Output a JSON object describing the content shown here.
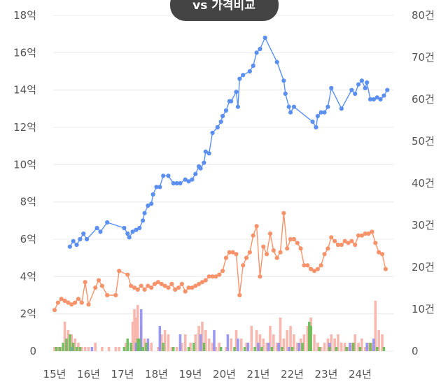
{
  "chart_data": {
    "type": "line",
    "badge": "vs 가격비교",
    "grid": true,
    "x_categories": [
      "15년",
      "16년",
      "17년",
      "18년",
      "19년",
      "20년",
      "21년",
      "22년",
      "23년",
      "24년"
    ],
    "x_range": [
      2015.0,
      2024.8
    ],
    "y_left": {
      "ticks": [
        "0",
        "2억",
        "4억",
        "6억",
        "8억",
        "10억",
        "12억",
        "14억",
        "16억",
        "18억"
      ],
      "range": [
        0,
        18
      ]
    },
    "y_right": {
      "ticks": [
        "0",
        "10건",
        "20건",
        "30건",
        "40건",
        "50건",
        "60건",
        "70건",
        "80건"
      ],
      "range": [
        0,
        80
      ]
    },
    "colors": {
      "blue": "#5b8ff0",
      "orange": "#f7936b",
      "pink_bar": "#f9b4ab",
      "green_bar": "#66bb55",
      "purple_bar": "#8f8ff0",
      "badge": "#444444"
    },
    "series": [
      {
        "key": "blue",
        "axis": "left",
        "points": [
          [
            2015.45,
            5.6
          ],
          [
            2015.55,
            5.9
          ],
          [
            2015.65,
            5.7
          ],
          [
            2015.75,
            6.0
          ],
          [
            2015.85,
            6.3
          ],
          [
            2015.95,
            6.0
          ],
          [
            2016.25,
            6.6
          ],
          [
            2016.35,
            6.4
          ],
          [
            2016.55,
            6.9
          ],
          [
            2017.05,
            6.6
          ],
          [
            2017.15,
            6.3
          ],
          [
            2017.2,
            6.1
          ],
          [
            2017.3,
            6.4
          ],
          [
            2017.4,
            6.5
          ],
          [
            2017.5,
            6.6
          ],
          [
            2017.6,
            7.0
          ],
          [
            2017.65,
            7.4
          ],
          [
            2017.75,
            7.8
          ],
          [
            2017.85,
            7.9
          ],
          [
            2017.9,
            8.4
          ],
          [
            2018.0,
            8.8
          ],
          [
            2018.1,
            8.8
          ],
          [
            2018.2,
            9.4
          ],
          [
            2018.35,
            9.4
          ],
          [
            2018.5,
            9.0
          ],
          [
            2018.6,
            9.0
          ],
          [
            2018.7,
            9.0
          ],
          [
            2018.85,
            9.2
          ],
          [
            2018.95,
            9.1
          ],
          [
            2019.05,
            9.2
          ],
          [
            2019.15,
            9.5
          ],
          [
            2019.25,
            9.9
          ],
          [
            2019.3,
            9.8
          ],
          [
            2019.4,
            10.1
          ],
          [
            2019.45,
            10.7
          ],
          [
            2019.55,
            10.6
          ],
          [
            2019.65,
            11.7
          ],
          [
            2019.8,
            12.0
          ],
          [
            2019.9,
            12.3
          ],
          [
            2019.95,
            12.6
          ],
          [
            2020.05,
            12.9
          ],
          [
            2020.15,
            13.4
          ],
          [
            2020.2,
            13.4
          ],
          [
            2020.35,
            13.9
          ],
          [
            2020.4,
            13.1
          ],
          [
            2020.45,
            14.6
          ],
          [
            2020.55,
            14.8
          ],
          [
            2020.75,
            15.0
          ],
          [
            2020.85,
            15.3
          ],
          [
            2020.95,
            16.0
          ],
          [
            2021.05,
            16.2
          ],
          [
            2021.2,
            16.8
          ],
          [
            2021.55,
            15.5
          ],
          [
            2021.75,
            14.5
          ],
          [
            2021.8,
            13.8
          ],
          [
            2021.9,
            13.1
          ],
          [
            2021.95,
            12.8
          ],
          [
            2022.05,
            13.1
          ],
          [
            2022.6,
            12.3
          ],
          [
            2022.7,
            12.0
          ],
          [
            2022.75,
            12.6
          ],
          [
            2022.85,
            12.8
          ],
          [
            2022.95,
            12.8
          ],
          [
            2023.05,
            13.1
          ],
          [
            2023.15,
            14.1
          ],
          [
            2023.45,
            13.0
          ],
          [
            2023.75,
            14.0
          ],
          [
            2023.85,
            13.8
          ],
          [
            2023.95,
            14.3
          ],
          [
            2024.05,
            14.5
          ],
          [
            2024.15,
            14.1
          ],
          [
            2024.2,
            14.4
          ],
          [
            2024.3,
            13.5
          ],
          [
            2024.4,
            13.5
          ],
          [
            2024.5,
            13.6
          ],
          [
            2024.6,
            13.5
          ],
          [
            2024.7,
            13.7
          ],
          [
            2024.8,
            14.0
          ]
        ]
      },
      {
        "key": "orange",
        "axis": "left",
        "points": [
          [
            2015.0,
            2.2
          ],
          [
            2015.1,
            2.6
          ],
          [
            2015.2,
            2.8
          ],
          [
            2015.3,
            2.7
          ],
          [
            2015.4,
            2.6
          ],
          [
            2015.5,
            2.5
          ],
          [
            2015.6,
            2.6
          ],
          [
            2015.7,
            2.8
          ],
          [
            2015.8,
            2.6
          ],
          [
            2015.9,
            3.7
          ],
          [
            2016.0,
            2.5
          ],
          [
            2016.2,
            3.4
          ],
          [
            2016.3,
            3.8
          ],
          [
            2016.4,
            3.5
          ],
          [
            2016.55,
            3.0
          ],
          [
            2016.8,
            3.0
          ],
          [
            2016.9,
            4.3
          ],
          [
            2017.15,
            4.1
          ],
          [
            2017.25,
            3.5
          ],
          [
            2017.35,
            3.4
          ],
          [
            2017.45,
            3.3
          ],
          [
            2017.55,
            3.5
          ],
          [
            2017.65,
            3.3
          ],
          [
            2017.75,
            3.5
          ],
          [
            2017.85,
            3.4
          ],
          [
            2017.95,
            3.6
          ],
          [
            2018.05,
            3.7
          ],
          [
            2018.15,
            3.6
          ],
          [
            2018.25,
            3.5
          ],
          [
            2018.35,
            3.4
          ],
          [
            2018.45,
            3.6
          ],
          [
            2018.55,
            3.3
          ],
          [
            2018.65,
            3.4
          ],
          [
            2018.75,
            3.6
          ],
          [
            2018.85,
            3.2
          ],
          [
            2018.95,
            3.4
          ],
          [
            2019.05,
            3.4
          ],
          [
            2019.15,
            3.5
          ],
          [
            2019.25,
            3.6
          ],
          [
            2019.35,
            3.7
          ],
          [
            2019.45,
            3.8
          ],
          [
            2019.55,
            4.0
          ],
          [
            2019.65,
            4.0
          ],
          [
            2019.75,
            4.0
          ],
          [
            2019.85,
            4.1
          ],
          [
            2019.95,
            4.3
          ],
          [
            2020.05,
            5.0
          ],
          [
            2020.15,
            5.3
          ],
          [
            2020.25,
            5.3
          ],
          [
            2020.35,
            5.2
          ],
          [
            2020.45,
            3.0
          ],
          [
            2020.55,
            4.6
          ],
          [
            2020.65,
            5.0
          ],
          [
            2020.75,
            5.3
          ],
          [
            2020.85,
            6.2
          ],
          [
            2020.95,
            6.7
          ],
          [
            2021.05,
            4.0
          ],
          [
            2021.15,
            5.6
          ],
          [
            2021.25,
            5.2
          ],
          [
            2021.35,
            6.3
          ],
          [
            2021.45,
            5.4
          ],
          [
            2021.55,
            5.0
          ],
          [
            2021.65,
            5.3
          ],
          [
            2021.75,
            7.4
          ],
          [
            2021.85,
            5.5
          ],
          [
            2021.95,
            6.0
          ],
          [
            2022.05,
            6.0
          ],
          [
            2022.15,
            5.8
          ],
          [
            2022.25,
            5.5
          ],
          [
            2022.35,
            4.6
          ],
          [
            2022.45,
            4.6
          ],
          [
            2022.55,
            4.4
          ],
          [
            2022.65,
            4.3
          ],
          [
            2022.75,
            4.4
          ],
          [
            2022.85,
            4.6
          ],
          [
            2022.95,
            5.2
          ],
          [
            2023.05,
            5.5
          ],
          [
            2023.15,
            6.1
          ],
          [
            2023.25,
            5.9
          ],
          [
            2023.35,
            5.7
          ],
          [
            2023.45,
            5.7
          ],
          [
            2023.55,
            5.9
          ],
          [
            2023.65,
            5.8
          ],
          [
            2023.75,
            5.9
          ],
          [
            2023.85,
            5.7
          ],
          [
            2023.95,
            6.2
          ],
          [
            2024.05,
            6.2
          ],
          [
            2024.15,
            6.3
          ],
          [
            2024.25,
            6.3
          ],
          [
            2024.35,
            6.4
          ],
          [
            2024.45,
            5.8
          ],
          [
            2024.55,
            5.3
          ],
          [
            2024.65,
            5.2
          ],
          [
            2024.75,
            4.4
          ]
        ]
      }
    ],
    "bars": {
      "axis": "right",
      "pink": [
        [
          2015.0,
          1
        ],
        [
          2015.1,
          1
        ],
        [
          2015.2,
          1
        ],
        [
          2015.3,
          7
        ],
        [
          2015.4,
          5
        ],
        [
          2015.5,
          4
        ],
        [
          2015.6,
          3
        ],
        [
          2015.7,
          2
        ],
        [
          2015.8,
          1
        ],
        [
          2015.9,
          1
        ],
        [
          2016.0,
          1
        ],
        [
          2016.2,
          2
        ],
        [
          2016.4,
          1
        ],
        [
          2016.6,
          1
        ],
        [
          2016.8,
          1
        ],
        [
          2016.9,
          1
        ],
        [
          2017.1,
          2
        ],
        [
          2017.3,
          7
        ],
        [
          2017.35,
          10
        ],
        [
          2017.4,
          8
        ],
        [
          2017.45,
          11
        ],
        [
          2017.55,
          6
        ],
        [
          2017.65,
          3
        ],
        [
          2017.75,
          2
        ],
        [
          2017.85,
          2
        ],
        [
          2018.05,
          1
        ],
        [
          2018.15,
          4
        ],
        [
          2018.25,
          5
        ],
        [
          2018.35,
          4
        ],
        [
          2018.45,
          1
        ],
        [
          2018.6,
          1
        ],
        [
          2018.75,
          2
        ],
        [
          2018.85,
          4
        ],
        [
          2019.0,
          2
        ],
        [
          2019.15,
          4
        ],
        [
          2019.25,
          6
        ],
        [
          2019.35,
          7
        ],
        [
          2019.45,
          5
        ],
        [
          2019.55,
          3
        ],
        [
          2019.65,
          2
        ],
        [
          2019.75,
          1
        ],
        [
          2019.85,
          2
        ],
        [
          2020.05,
          1
        ],
        [
          2020.2,
          3
        ],
        [
          2020.35,
          5
        ],
        [
          2020.5,
          3
        ],
        [
          2020.65,
          2
        ],
        [
          2020.8,
          6
        ],
        [
          2020.95,
          5
        ],
        [
          2021.05,
          4
        ],
        [
          2021.15,
          3
        ],
        [
          2021.25,
          2
        ],
        [
          2021.35,
          6
        ],
        [
          2021.45,
          4
        ],
        [
          2021.55,
          2
        ],
        [
          2021.65,
          8
        ],
        [
          2021.75,
          3
        ],
        [
          2021.85,
          5
        ],
        [
          2021.95,
          6
        ],
        [
          2022.05,
          4
        ],
        [
          2022.15,
          2
        ],
        [
          2022.25,
          3
        ],
        [
          2022.35,
          4
        ],
        [
          2022.45,
          6
        ],
        [
          2022.55,
          8
        ],
        [
          2022.65,
          4
        ],
        [
          2022.75,
          2
        ],
        [
          2022.85,
          1
        ],
        [
          2022.95,
          2
        ],
        [
          2023.05,
          3
        ],
        [
          2023.15,
          4
        ],
        [
          2023.25,
          3
        ],
        [
          2023.35,
          4
        ],
        [
          2023.45,
          2
        ],
        [
          2023.55,
          2
        ],
        [
          2023.65,
          1
        ],
        [
          2023.75,
          2
        ],
        [
          2023.85,
          4
        ],
        [
          2023.95,
          2
        ],
        [
          2024.05,
          3
        ],
        [
          2024.15,
          1
        ],
        [
          2024.25,
          2
        ],
        [
          2024.35,
          2
        ],
        [
          2024.45,
          12
        ],
        [
          2024.55,
          5
        ],
        [
          2024.65,
          4
        ]
      ],
      "green": [
        [
          2015.05,
          1
        ],
        [
          2015.15,
          1
        ],
        [
          2015.25,
          2
        ],
        [
          2015.35,
          3
        ],
        [
          2015.45,
          4
        ],
        [
          2015.55,
          2
        ],
        [
          2015.65,
          1
        ],
        [
          2015.75,
          1
        ],
        [
          2017.05,
          1
        ],
        [
          2017.15,
          3
        ],
        [
          2017.25,
          2
        ],
        [
          2017.45,
          3
        ],
        [
          2017.5,
          3
        ],
        [
          2017.6,
          1
        ],
        [
          2017.7,
          2
        ],
        [
          2018.2,
          2
        ],
        [
          2018.5,
          1
        ],
        [
          2018.95,
          1
        ],
        [
          2019.1,
          2
        ],
        [
          2019.4,
          2
        ],
        [
          2019.9,
          1
        ],
        [
          2020.3,
          1
        ],
        [
          2020.6,
          1
        ],
        [
          2020.9,
          1
        ],
        [
          2021.1,
          1
        ],
        [
          2021.4,
          1
        ],
        [
          2021.7,
          1
        ],
        [
          2022.0,
          1
        ],
        [
          2022.3,
          2
        ],
        [
          2022.5,
          7
        ],
        [
          2022.55,
          6
        ],
        [
          2022.8,
          1
        ],
        [
          2023.1,
          1
        ],
        [
          2023.3,
          1
        ],
        [
          2023.6,
          1
        ],
        [
          2023.8,
          2
        ],
        [
          2024.0,
          1
        ],
        [
          2024.3,
          2
        ],
        [
          2024.5,
          1
        ],
        [
          2024.7,
          1
        ]
      ],
      "purple": [
        [
          2015.5,
          1
        ],
        [
          2016.1,
          1
        ],
        [
          2017.4,
          2
        ],
        [
          2017.55,
          10
        ],
        [
          2017.75,
          3
        ],
        [
          2018.1,
          6
        ],
        [
          2018.7,
          4
        ],
        [
          2019.3,
          4
        ],
        [
          2019.7,
          5
        ],
        [
          2020.1,
          4
        ],
        [
          2020.4,
          3
        ],
        [
          2020.7,
          2
        ],
        [
          2021.0,
          2
        ],
        [
          2021.3,
          2
        ],
        [
          2021.6,
          2
        ],
        [
          2021.9,
          1
        ],
        [
          2022.2,
          2
        ],
        [
          2023.1,
          2
        ],
        [
          2023.7,
          2
        ],
        [
          2024.2,
          2
        ],
        [
          2024.4,
          3
        ]
      ]
    }
  }
}
